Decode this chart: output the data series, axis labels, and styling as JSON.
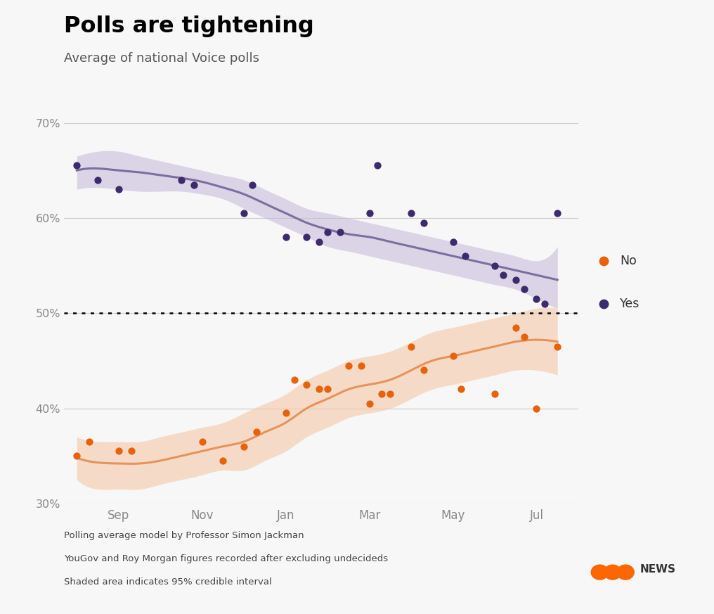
{
  "title": "Polls are tightening",
  "subtitle": "Average of national Voice polls",
  "footnotes": [
    "Polling average model by Professor Simon Jackman",
    "YouGov and Roy Morgan figures recorded after excluding undecideds",
    "Shaded area indicates 95% credible interval"
  ],
  "ylim": [
    30,
    70
  ],
  "yticks": [
    30,
    40,
    50,
    60,
    70
  ],
  "xlabel_months": [
    "Sep",
    "Nov",
    "Jan",
    "Mar",
    "May",
    "Jul"
  ],
  "month_positions": [
    1,
    3,
    5,
    7,
    9,
    11
  ],
  "dotted_line_y": 50,
  "yes_color": "#3d2b6b",
  "no_color": "#e8620a",
  "yes_line_color": "#7b6fa0",
  "no_line_color": "#e8925a",
  "yes_band_color": "#c5b8d8",
  "no_band_color": "#f5c9a8",
  "background_color": "#f7f7f7",
  "yes_dots": [
    [
      0.0,
      65.5
    ],
    [
      0.5,
      64.0
    ],
    [
      1.0,
      63.0
    ],
    [
      2.5,
      64.0
    ],
    [
      2.8,
      63.5
    ],
    [
      4.0,
      60.5
    ],
    [
      4.2,
      63.5
    ],
    [
      5.0,
      58.0
    ],
    [
      5.5,
      58.0
    ],
    [
      5.8,
      57.5
    ],
    [
      6.0,
      58.5
    ],
    [
      6.3,
      58.5
    ],
    [
      7.0,
      60.5
    ],
    [
      7.2,
      65.5
    ],
    [
      8.0,
      60.5
    ],
    [
      8.3,
      59.5
    ],
    [
      9.0,
      57.5
    ],
    [
      9.3,
      56.0
    ],
    [
      10.0,
      55.0
    ],
    [
      10.2,
      54.0
    ],
    [
      10.5,
      53.5
    ],
    [
      10.7,
      52.5
    ],
    [
      11.0,
      51.5
    ],
    [
      11.2,
      51.0
    ],
    [
      11.5,
      60.5
    ]
  ],
  "no_dots": [
    [
      0.0,
      35.0
    ],
    [
      0.3,
      36.5
    ],
    [
      1.0,
      35.5
    ],
    [
      1.3,
      35.5
    ],
    [
      3.0,
      36.5
    ],
    [
      3.5,
      34.5
    ],
    [
      4.0,
      36.0
    ],
    [
      4.3,
      37.5
    ],
    [
      5.0,
      39.5
    ],
    [
      5.2,
      43.0
    ],
    [
      5.5,
      42.5
    ],
    [
      5.8,
      42.0
    ],
    [
      6.0,
      42.0
    ],
    [
      6.5,
      44.5
    ],
    [
      6.8,
      44.5
    ],
    [
      7.0,
      40.5
    ],
    [
      7.3,
      41.5
    ],
    [
      7.5,
      41.5
    ],
    [
      8.0,
      46.5
    ],
    [
      8.3,
      44.0
    ],
    [
      9.0,
      45.5
    ],
    [
      9.2,
      42.0
    ],
    [
      10.0,
      41.5
    ],
    [
      10.5,
      48.5
    ],
    [
      10.7,
      47.5
    ],
    [
      11.0,
      40.0
    ],
    [
      11.5,
      46.5
    ]
  ],
  "yes_smooth_x": [
    0.0,
    0.5,
    1.0,
    1.5,
    2.0,
    2.5,
    3.0,
    3.5,
    4.0,
    4.5,
    5.0,
    5.5,
    6.0,
    6.5,
    7.0,
    7.5,
    8.0,
    8.5,
    9.0,
    9.5,
    10.0,
    10.5,
    11.0,
    11.5
  ],
  "yes_smooth_y": [
    65.0,
    65.2,
    65.0,
    64.8,
    64.5,
    64.2,
    63.8,
    63.2,
    62.5,
    61.5,
    60.5,
    59.5,
    58.8,
    58.3,
    58.0,
    57.5,
    57.0,
    56.5,
    56.0,
    55.5,
    55.0,
    54.5,
    54.0,
    53.5
  ],
  "yes_upper": [
    66.5,
    67.0,
    67.0,
    66.5,
    66.0,
    65.5,
    65.0,
    64.5,
    64.0,
    63.0,
    62.0,
    61.0,
    60.5,
    60.0,
    59.5,
    59.0,
    58.5,
    58.0,
    57.5,
    57.0,
    56.5,
    56.0,
    55.5,
    57.0
  ],
  "yes_lower": [
    63.0,
    63.2,
    63.0,
    62.8,
    62.8,
    62.8,
    62.5,
    62.0,
    61.0,
    60.0,
    59.0,
    58.0,
    57.0,
    56.5,
    56.0,
    55.5,
    55.0,
    54.5,
    54.0,
    53.5,
    53.0,
    52.5,
    51.5,
    50.5
  ],
  "no_smooth_x": [
    0.0,
    0.5,
    1.0,
    1.5,
    2.0,
    2.5,
    3.0,
    3.5,
    4.0,
    4.5,
    5.0,
    5.5,
    6.0,
    6.5,
    7.0,
    7.5,
    8.0,
    8.5,
    9.0,
    9.5,
    10.0,
    10.5,
    11.0,
    11.5
  ],
  "no_smooth_y": [
    34.8,
    34.3,
    34.2,
    34.2,
    34.5,
    35.0,
    35.5,
    36.0,
    36.5,
    37.5,
    38.5,
    40.0,
    41.0,
    42.0,
    42.5,
    43.0,
    44.0,
    45.0,
    45.5,
    46.0,
    46.5,
    47.0,
    47.2,
    47.0
  ],
  "no_upper": [
    37.0,
    36.5,
    36.5,
    36.5,
    37.0,
    37.5,
    38.0,
    38.5,
    39.5,
    40.5,
    41.5,
    43.0,
    44.0,
    45.0,
    45.5,
    46.0,
    47.0,
    48.0,
    48.5,
    49.0,
    49.5,
    50.0,
    50.5,
    50.5
  ],
  "no_lower": [
    32.5,
    31.5,
    31.5,
    31.5,
    32.0,
    32.5,
    33.0,
    33.5,
    33.5,
    34.5,
    35.5,
    37.0,
    38.0,
    39.0,
    39.5,
    40.0,
    41.0,
    42.0,
    42.5,
    43.0,
    43.5,
    44.0,
    44.0,
    43.5
  ],
  "xlim": [
    -0.3,
    12.0
  ]
}
